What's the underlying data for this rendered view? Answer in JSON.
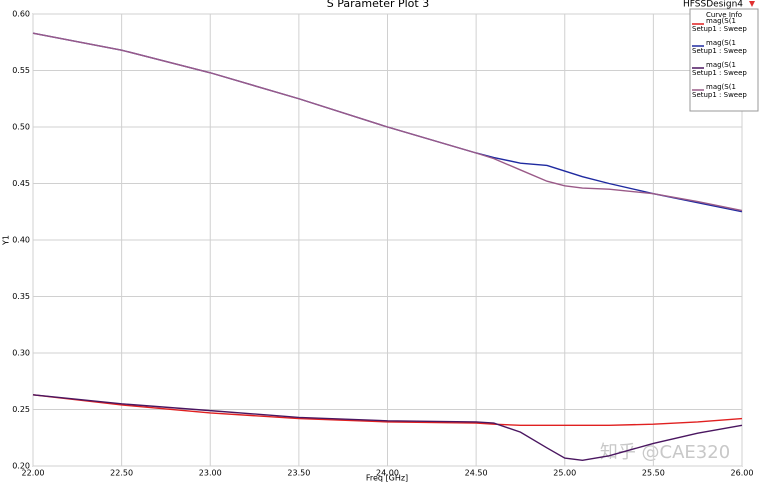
{
  "chart_data": {
    "type": "line",
    "title": "S Parameter Plot 3",
    "design": "HFSSDesign4",
    "legend_title": "Curve Info",
    "xlabel": "Freq [GHz]",
    "ylabel": "Y1",
    "watermark": "知乎 @CAE320",
    "x": [
      22,
      22.5,
      23,
      23.5,
      24,
      24.5,
      24.6,
      24.75,
      24.9,
      25,
      25.1,
      25.25,
      25.5,
      25.75,
      26
    ],
    "series": [
      {
        "name": "mag(S(1",
        "setup": "Setup1 : Sweep",
        "color": "#e02020",
        "values": [
          0.263,
          0.254,
          0.247,
          0.242,
          0.239,
          0.238,
          0.237,
          0.236,
          0.236,
          0.236,
          0.236,
          0.236,
          0.237,
          0.239,
          0.242
        ]
      },
      {
        "name": "mag(S(1",
        "setup": "Setup1 : Sweep",
        "color": "#1f2aa0",
        "values": [
          0.583,
          0.568,
          0.548,
          0.525,
          0.5,
          0.477,
          0.473,
          0.468,
          0.466,
          0.461,
          0.456,
          0.45,
          0.441,
          0.433,
          0.425
        ]
      },
      {
        "name": "mag(S(1",
        "setup": "Setup1 : Sweep",
        "color": "#4a1660",
        "values": [
          0.263,
          0.255,
          0.249,
          0.243,
          0.24,
          0.239,
          0.238,
          0.23,
          0.216,
          0.207,
          0.205,
          0.209,
          0.22,
          0.229,
          0.236
        ]
      },
      {
        "name": "mag(S(1",
        "setup": "Setup1 : Sweep",
        "color": "#9a5a88",
        "values": [
          0.583,
          0.568,
          0.548,
          0.525,
          0.5,
          0.477,
          0.472,
          0.462,
          0.452,
          0.448,
          0.446,
          0.445,
          0.441,
          0.434,
          0.426
        ]
      }
    ],
    "xlim": [
      22,
      26
    ],
    "ylim": [
      0.2,
      0.6
    ],
    "xticks": [
      {
        "value": 22,
        "label": "22.00"
      },
      {
        "value": 22.5,
        "label": "22.50"
      },
      {
        "value": 23,
        "label": "23.00"
      },
      {
        "value": 23.5,
        "label": "23.50"
      },
      {
        "value": 24,
        "label": "24.00"
      },
      {
        "value": 24.5,
        "label": "24.50"
      },
      {
        "value": 25,
        "label": "25.00"
      },
      {
        "value": 25.5,
        "label": "25.50"
      },
      {
        "value": 26,
        "label": "26.00"
      }
    ],
    "yticks": [
      {
        "value": 0.2,
        "label": "0.20"
      },
      {
        "value": 0.25,
        "label": "0.25"
      },
      {
        "value": 0.3,
        "label": "0.30"
      },
      {
        "value": 0.35,
        "label": "0.35"
      },
      {
        "value": 0.4,
        "label": "0.40"
      },
      {
        "value": 0.45,
        "label": "0.45"
      },
      {
        "value": 0.5,
        "label": "0.50"
      },
      {
        "value": 0.55,
        "label": "0.55"
      },
      {
        "value": 0.6,
        "label": "0.60"
      }
    ],
    "grid": true
  }
}
